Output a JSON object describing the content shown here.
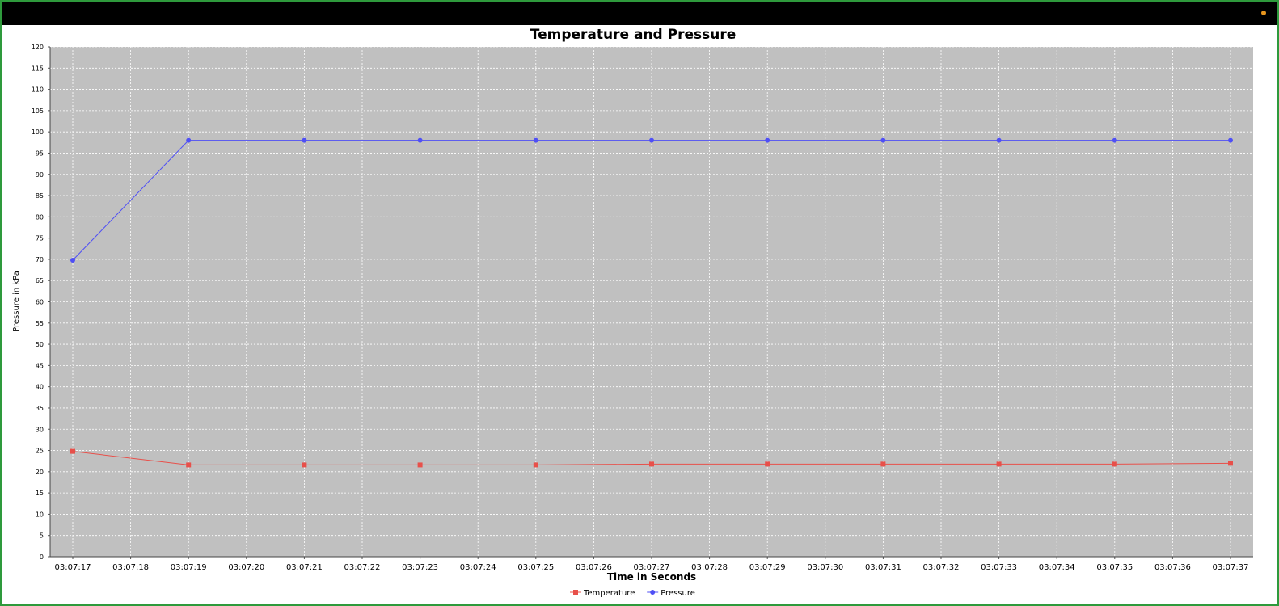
{
  "window": {
    "indicator_color": "#e8961e"
  },
  "chart_data": {
    "type": "line",
    "title": "Temperature and Pressure",
    "xlabel": "Time in Seconds",
    "ylabel": "Pressure in kPa",
    "ylim": [
      0,
      120
    ],
    "y_ticks": [
      0,
      5,
      10,
      15,
      20,
      25,
      30,
      35,
      40,
      45,
      50,
      55,
      60,
      65,
      70,
      75,
      80,
      85,
      90,
      95,
      100,
      105,
      110,
      115,
      120
    ],
    "x_ticks": [
      "03:07:17",
      "03:07:18",
      "03:07:19",
      "03:07:20",
      "03:07:21",
      "03:07:22",
      "03:07:23",
      "03:07:24",
      "03:07:25",
      "03:07:26",
      "03:07:27",
      "03:07:28",
      "03:07:29",
      "03:07:30",
      "03:07:31",
      "03:07:32",
      "03:07:33",
      "03:07:34",
      "03:07:35",
      "03:07:36",
      "03:07:37"
    ],
    "x": [
      "03:07:17",
      "03:07:19",
      "03:07:21",
      "03:07:23",
      "03:07:25",
      "03:07:27",
      "03:07:29",
      "03:07:31",
      "03:07:33",
      "03:07:35",
      "03:07:37"
    ],
    "series": [
      {
        "name": "Temperature",
        "color": "#e8504a",
        "marker": "square",
        "values": [
          24.8,
          21.6,
          21.6,
          21.6,
          21.6,
          21.8,
          21.8,
          21.8,
          21.8,
          21.8,
          22.0
        ]
      },
      {
        "name": "Pressure",
        "color": "#4f4ff5",
        "marker": "circle",
        "values": [
          69.8,
          98.0,
          98.0,
          98.0,
          98.0,
          98.0,
          98.0,
          98.0,
          98.0,
          98.0,
          98.0
        ]
      }
    ],
    "grid": true,
    "legend": "bottom-center",
    "plot_background": "#c0c0c0",
    "grid_color": "#ffffff"
  }
}
